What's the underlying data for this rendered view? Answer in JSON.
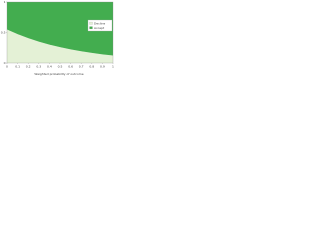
{
  "chart_data": {
    "type": "area",
    "stacked": true,
    "x_label": "Weighted probability of outcome",
    "x": [
      0,
      0.1,
      0.2,
      0.3,
      0.4,
      0.5,
      0.6,
      0.7,
      0.8,
      0.9,
      1
    ],
    "series": [
      {
        "name": "Decline",
        "color": "#e4f1d6",
        "values": [
          0.55,
          0.473,
          0.407,
          0.35,
          0.302,
          0.26,
          0.224,
          0.192,
          0.166,
          0.142,
          0.123
        ]
      },
      {
        "name": "Accept",
        "color": "#43ad4f",
        "values": [
          0.45,
          0.527,
          0.593,
          0.65,
          0.698,
          0.74,
          0.776,
          0.808,
          0.834,
          0.858,
          0.877
        ]
      }
    ],
    "xlim": [
      0,
      1
    ],
    "ylim": [
      0,
      1
    ],
    "xticks": [
      0,
      0.1,
      0.2,
      0.3,
      0.4,
      0.5,
      0.6,
      0.7,
      0.8,
      0.9,
      1
    ],
    "yticks": [
      0,
      0.5,
      1
    ],
    "legend": "right"
  }
}
